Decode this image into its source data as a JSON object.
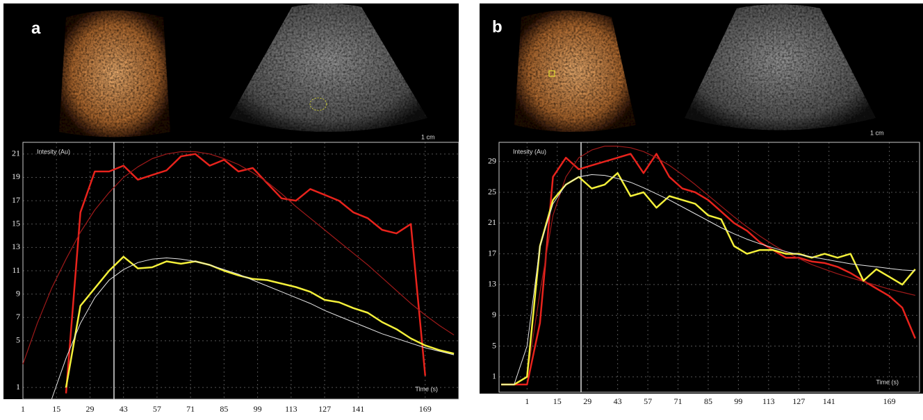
{
  "chart_data": [
    {
      "type": "line",
      "label": "a",
      "scale_label": "1 cm",
      "y_label": "Intesity (Au)",
      "x_label": "Time (s)",
      "xlim": [
        1,
        183
      ],
      "ylim": [
        0,
        22
      ],
      "xticks": [
        1,
        15,
        29,
        43,
        57,
        71,
        85,
        99,
        113,
        127,
        141,
        169
      ],
      "yticks": [
        21,
        19,
        17,
        15,
        13,
        11,
        9,
        7,
        5,
        1
      ],
      "grid": true,
      "x": [
        1,
        7,
        13,
        19,
        25,
        31,
        37,
        43,
        49,
        55,
        61,
        67,
        73,
        79,
        85,
        91,
        97,
        103,
        109,
        115,
        121,
        127,
        133,
        139,
        145,
        151,
        157,
        163,
        169,
        175,
        181
      ],
      "series": [
        {
          "color": "#e8231c",
          "values": [
            null,
            null,
            null,
            0.5,
            16,
            19.5,
            19.5,
            20,
            18.8,
            19.2,
            19.6,
            20.8,
            21,
            20,
            20.5,
            19.5,
            19.8,
            18.5,
            17.2,
            17,
            18,
            17.5,
            17,
            16,
            15.5,
            14.5,
            14.2,
            15,
            2,
            null,
            null
          ]
        },
        {
          "color": "#a01a1a",
          "values": [
            3,
            6.5,
            9.5,
            12,
            14.3,
            16.2,
            17.7,
            19,
            19.9,
            20.6,
            21,
            21.2,
            21.2,
            21,
            20.6,
            20.1,
            19.4,
            18.6,
            17.6,
            16.5,
            15.5,
            14.5,
            13.5,
            12.5,
            11.5,
            10.4,
            9.3,
            8.2,
            7.2,
            6.3,
            5.5
          ]
        },
        {
          "color": "#f4f03a",
          "values": [
            null,
            null,
            null,
            1,
            8,
            9.5,
            11,
            12.2,
            11.2,
            11.3,
            11.8,
            11.6,
            11.8,
            11.5,
            11,
            10.6,
            10.3,
            10.2,
            9.9,
            9.6,
            9.2,
            8.5,
            8.3,
            7.8,
            7.4,
            6.6,
            6,
            5.2,
            4.6,
            4.2,
            3.9
          ]
        },
        {
          "color": "#e8e8e8",
          "values": [
            null,
            null,
            0,
            3.5,
            6.5,
            8.7,
            10.2,
            11.1,
            11.7,
            12,
            12.1,
            12,
            11.8,
            11.5,
            11.1,
            10.7,
            10.2,
            9.7,
            9.2,
            8.7,
            8.2,
            7.6,
            7.1,
            6.6,
            6.1,
            5.6,
            5.2,
            4.8,
            4.4,
            4.1,
            3.8
          ]
        }
      ]
    },
    {
      "type": "line",
      "label": "b",
      "scale_label": "1 cm",
      "y_label": "Intesity (Au)",
      "x_label": "Time (s)",
      "xlim": [
        -12,
        183
      ],
      "ylim": [
        -1,
        31.5
      ],
      "xticks": [
        1,
        15,
        29,
        43,
        57,
        71,
        85,
        99,
        113,
        127,
        141,
        169
      ],
      "yticks": [
        29,
        25,
        21,
        17,
        13,
        9,
        5,
        1
      ],
      "grid": true,
      "x": [
        -11,
        -5,
        1,
        7,
        13,
        19,
        25,
        31,
        37,
        43,
        49,
        55,
        61,
        67,
        73,
        79,
        85,
        91,
        97,
        103,
        109,
        115,
        121,
        127,
        133,
        139,
        145,
        151,
        157,
        163,
        169,
        175,
        181
      ],
      "series": [
        {
          "color": "#e8231c",
          "values": [
            0,
            0,
            0,
            8,
            27,
            29.5,
            28,
            28.5,
            29,
            29.5,
            30,
            27.5,
            30,
            27,
            25.5,
            25,
            24,
            22.5,
            21,
            20,
            18.5,
            17.5,
            16.5,
            16.5,
            16,
            15.8,
            15.3,
            14.5,
            13.5,
            12.5,
            11.5,
            10,
            6
          ]
        },
        {
          "color": "#a01a1a",
          "values": [
            0,
            0,
            1,
            12,
            22,
            27,
            29.5,
            30.5,
            31,
            31,
            30.8,
            30.3,
            29.5,
            28.5,
            27.3,
            26,
            24.6,
            23.2,
            21.8,
            20.5,
            19.3,
            18.2,
            17.2,
            16.4,
            15.6,
            15,
            14.4,
            13.9,
            13.4,
            12.9,
            12.4,
            12,
            11.6
          ]
        },
        {
          "color": "#f4f03a",
          "values": [
            0,
            0,
            1,
            18,
            24,
            26,
            27,
            25.5,
            26,
            27.5,
            24.5,
            25,
            23,
            24.5,
            24,
            23.5,
            22,
            21.5,
            18,
            17,
            17.5,
            17.5,
            17,
            17,
            16.5,
            17,
            16.5,
            17,
            13.5,
            15,
            14,
            13,
            15
          ]
        },
        {
          "color": "#e8e8e8",
          "values": [
            0,
            0,
            5,
            18,
            23.5,
            26,
            27,
            27.3,
            27.2,
            26.8,
            26.3,
            25.6,
            24.8,
            24,
            23.1,
            22.2,
            21.3,
            20.4,
            19.6,
            18.9,
            18.3,
            17.8,
            17.3,
            16.9,
            16.6,
            16.3,
            16,
            15.7,
            15.5,
            15.3,
            15.1,
            14.9,
            14.8
          ]
        }
      ]
    }
  ]
}
